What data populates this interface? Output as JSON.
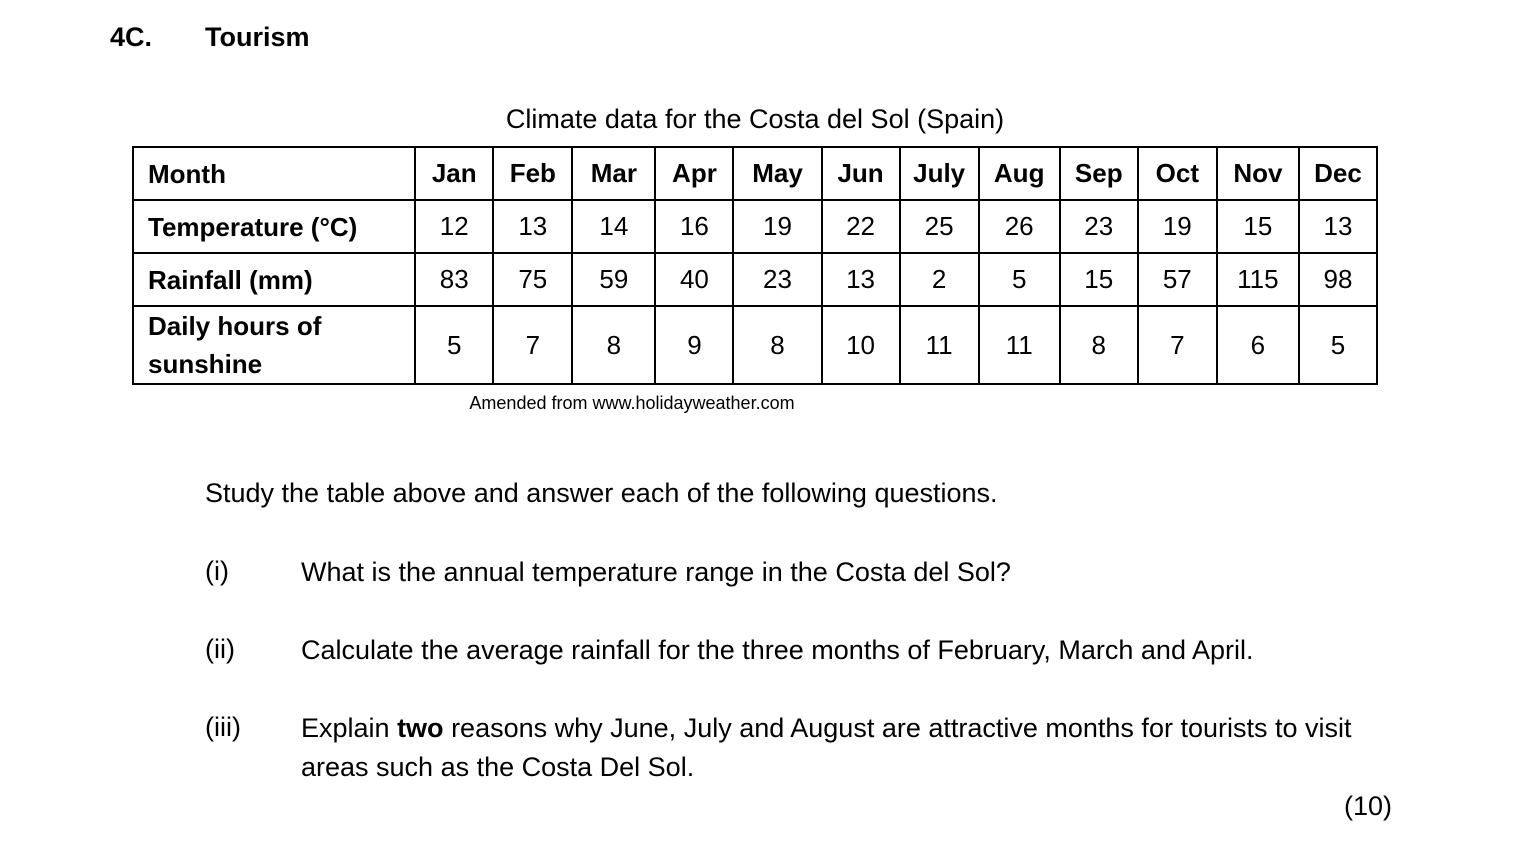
{
  "section": {
    "number": "4C.",
    "title": "Tourism"
  },
  "table": {
    "caption": "Climate data for the Costa del Sol (Spain)",
    "header_label": "Month",
    "months": [
      "Jan",
      "Feb",
      "Mar",
      "Apr",
      "May",
      "Jun",
      "July",
      "Aug",
      "Sep",
      "Oct",
      "Nov",
      "Dec"
    ],
    "rows": [
      {
        "label": "Temperature (°C)",
        "values": [
          "12",
          "13",
          "14",
          "16",
          "19",
          "22",
          "25",
          "26",
          "23",
          "19",
          "15",
          "13"
        ]
      },
      {
        "label": "Rainfall (mm)",
        "values": [
          "83",
          "75",
          "59",
          "40",
          "23",
          "13",
          "2",
          "5",
          "15",
          "57",
          "115",
          "98"
        ]
      },
      {
        "label_line1": "Daily hours of",
        "label_line2": "sunshine",
        "values": [
          "5",
          "7",
          "8",
          "9",
          "8",
          "10",
          "11",
          "11",
          "8",
          "7",
          "6",
          "5"
        ]
      }
    ],
    "source": "Amended from www.holidayweather.com"
  },
  "instruction": "Study the table above and answer each of the following questions.",
  "questions": [
    {
      "num": "(i)",
      "text": "What is the annual temperature range in the Costa del Sol?"
    },
    {
      "num": "(ii)",
      "text": "Calculate the average rainfall for the three months of February, March and April."
    },
    {
      "num": "(iii)",
      "text_before": "Explain ",
      "text_bold": "two",
      "text_after": " reasons why June, July and August are attractive months for tourists to visit areas such as the Costa Del Sol."
    }
  ],
  "marks": "(10)"
}
